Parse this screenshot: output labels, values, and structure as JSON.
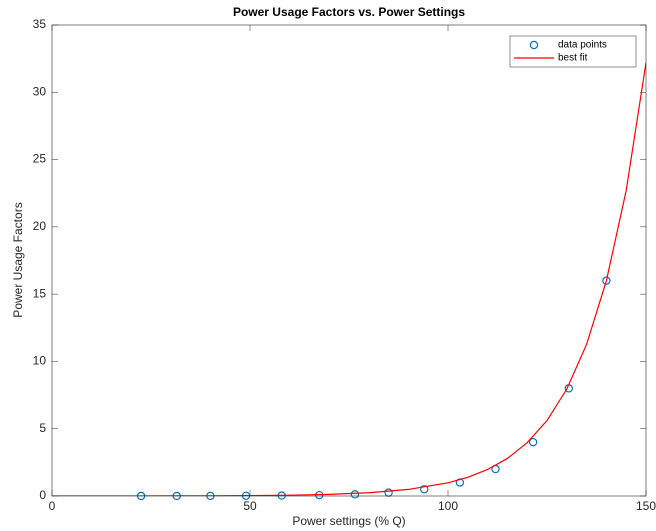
{
  "chart_data": {
    "type": "scatter",
    "title": "Power Usage Factors vs. Power Settings",
    "x_label": "Power settings (% Q)",
    "y_label": "Power Usage Factors",
    "xlim": [
      0,
      150
    ],
    "ylim": [
      0,
      35
    ],
    "xticks": [
      0,
      50,
      100,
      150
    ],
    "yticks": [
      0,
      5,
      10,
      15,
      20,
      25,
      30,
      35
    ],
    "grid": false,
    "legend": "top-right",
    "series": [
      {
        "name": "data points",
        "color": "#0072bd",
        "marker": "circle",
        "x": [
          22.5,
          31.5,
          40,
          49,
          58,
          67.5,
          76.5,
          85,
          94,
          103,
          112,
          121.5,
          130.5,
          140
        ],
        "values": [
          0.002,
          0.004,
          0.008,
          0.016,
          0.031,
          0.0625,
          0.125,
          0.25,
          0.5,
          1,
          2,
          4,
          8,
          16
        ]
      },
      {
        "name": "best fit",
        "color": "#ff0000",
        "marker": "line",
        "x": [
          0,
          10,
          20,
          30,
          40,
          50,
          60,
          70,
          80,
          90,
          100,
          105,
          110,
          115,
          120,
          125,
          130,
          135,
          140,
          145,
          150
        ],
        "values": [
          0.001,
          0.002,
          0.004,
          0.0075,
          0.015,
          0.03,
          0.06,
          0.12,
          0.24,
          0.49,
          0.98,
          1.39,
          1.97,
          2.79,
          3.96,
          5.61,
          7.95,
          11.27,
          16,
          22.7,
          32.2
        ]
      }
    ]
  }
}
